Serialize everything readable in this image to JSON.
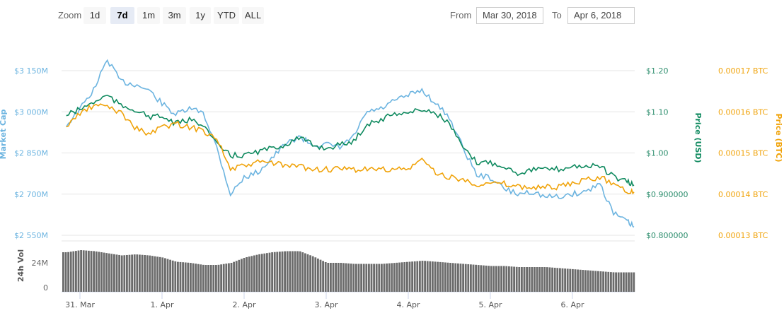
{
  "range_selector": {
    "zoom_label": "Zoom",
    "buttons": [
      "1d",
      "7d",
      "1m",
      "3m",
      "1y",
      "YTD",
      "ALL"
    ],
    "selected": "7d",
    "from_label": "From",
    "from_value": "Mar 30, 2018",
    "to_label": "To",
    "to_value": "Apr 6, 2018"
  },
  "colors": {
    "market_cap": "#6cb4e0",
    "price_usd": "#0f8a5f",
    "price_btc": "#f0a30a",
    "volume": "#6b6b6b"
  },
  "chart_data": {
    "type": "line",
    "x_ticks": [
      {
        "date": "2018-03-31T00:00",
        "label": "31. Mar"
      },
      {
        "date": "2018-04-01T00:00",
        "label": "1. Apr"
      },
      {
        "date": "2018-04-02T00:00",
        "label": "2. Apr"
      },
      {
        "date": "2018-04-03T00:00",
        "label": "3. Apr"
      },
      {
        "date": "2018-04-04T00:00",
        "label": "4. Apr"
      },
      {
        "date": "2018-04-05T00:00",
        "label": "5. Apr"
      },
      {
        "date": "2018-04-06T00:00",
        "label": "6. Apr"
      }
    ],
    "x_range": [
      "2018-03-30T19:00",
      "2018-04-06T18:00"
    ],
    "grid": true,
    "axes": {
      "market_cap": {
        "title": "Market Cap",
        "range": [
          2550,
          3150
        ],
        "ticks": [
          "$3 150M",
          "$3 000M",
          "$2 850M",
          "$2 700M",
          "$2 550M"
        ],
        "unit": "M USD"
      },
      "price_usd": {
        "title": "Price (USD)",
        "range": [
          0.8,
          1.2
        ],
        "ticks": [
          "$1.20",
          "$1.10",
          "$1.00",
          "$0.900000",
          "$0.800000"
        ]
      },
      "price_btc": {
        "title": "Price (BTC)",
        "range": [
          0.00013,
          0.00017
        ],
        "ticks": [
          "0.00017 BTC",
          "0.00016 BTC",
          "0.00015 BTC",
          "0.00014 BTC",
          "0.00013 BTC"
        ]
      },
      "volume": {
        "title": "24h Vol",
        "range": [
          0,
          36
        ],
        "ticks": [
          "24M",
          "0"
        ],
        "unit": "M USD"
      }
    },
    "x": [
      "2018-03-30T20:00",
      "2018-03-31T00:00",
      "2018-03-31T04:00",
      "2018-03-31T08:00",
      "2018-03-31T12:00",
      "2018-03-31T16:00",
      "2018-03-31T20:00",
      "2018-04-01T00:00",
      "2018-04-01T04:00",
      "2018-04-01T08:00",
      "2018-04-01T12:00",
      "2018-04-01T16:00",
      "2018-04-01T20:00",
      "2018-04-02T00:00",
      "2018-04-02T04:00",
      "2018-04-02T08:00",
      "2018-04-02T12:00",
      "2018-04-02T16:00",
      "2018-04-02T20:00",
      "2018-04-03T00:00",
      "2018-04-03T04:00",
      "2018-04-03T08:00",
      "2018-04-03T12:00",
      "2018-04-03T16:00",
      "2018-04-03T20:00",
      "2018-04-04T00:00",
      "2018-04-04T04:00",
      "2018-04-04T08:00",
      "2018-04-04T12:00",
      "2018-04-04T16:00",
      "2018-04-04T20:00",
      "2018-04-05T00:00",
      "2018-04-05T04:00",
      "2018-04-05T08:00",
      "2018-04-05T12:00",
      "2018-04-05T16:00",
      "2018-04-05T20:00",
      "2018-04-06T00:00",
      "2018-04-06T04:00",
      "2018-04-06T08:00",
      "2018-04-06T12:00",
      "2018-04-06T16:00",
      "2018-04-06T18:00"
    ],
    "series": [
      {
        "key": "market_cap",
        "axis": "market_cap",
        "values": [
          2950,
          3010,
          3080,
          3190,
          3110,
          3100,
          3080,
          3030,
          2990,
          3010,
          3000,
          2870,
          2700,
          2760,
          2780,
          2830,
          2880,
          2910,
          2880,
          2880,
          2870,
          2910,
          3000,
          3010,
          3040,
          3060,
          3080,
          3030,
          2980,
          2870,
          2770,
          2760,
          2720,
          2700,
          2710,
          2690,
          2690,
          2700,
          2710,
          2740,
          2630,
          2600,
          2580
        ]
      },
      {
        "key": "price_usd",
        "axis": "price_usd",
        "values": [
          1.092,
          1.106,
          1.123,
          1.14,
          1.114,
          1.106,
          1.088,
          1.088,
          1.071,
          1.08,
          1.071,
          1.02,
          0.994,
          0.994,
          1.003,
          1.011,
          1.02,
          1.037,
          1.02,
          1.011,
          1.02,
          1.028,
          1.071,
          1.08,
          1.097,
          1.097,
          1.106,
          1.097,
          1.071,
          1.011,
          0.977,
          0.977,
          0.968,
          0.951,
          0.96,
          0.96,
          0.96,
          0.968,
          0.968,
          0.968,
          0.942,
          0.929,
          0.922
        ]
      },
      {
        "key": "price_btc",
        "axis": "price_btc",
        "values": [
          0.0001563,
          0.0001597,
          0.0001614,
          0.0001614,
          0.0001597,
          0.0001563,
          0.0001545,
          0.0001563,
          0.0001571,
          0.0001563,
          0.0001554,
          0.0001537,
          0.000146,
          0.0001468,
          0.0001477,
          0.0001477,
          0.0001468,
          0.0001468,
          0.000146,
          0.000146,
          0.000146,
          0.000146,
          0.000146,
          0.000146,
          0.000146,
          0.000146,
          0.0001485,
          0.0001451,
          0.0001442,
          0.0001434,
          0.0001425,
          0.0001425,
          0.0001425,
          0.0001417,
          0.0001417,
          0.0001417,
          0.0001417,
          0.0001425,
          0.0001434,
          0.0001442,
          0.0001425,
          0.0001408,
          0.0001405
        ]
      },
      {
        "key": "volume",
        "axis": "volume",
        "type": "bar",
        "values": [
          34,
          36,
          35,
          33,
          31,
          32,
          31,
          29,
          25,
          24,
          22,
          22,
          24,
          29,
          32,
          34,
          35,
          35,
          30,
          24,
          24,
          23,
          23,
          23,
          24,
          25,
          26,
          25,
          24,
          23,
          22,
          21,
          21,
          20,
          20,
          20,
          19,
          18,
          17,
          16,
          15,
          15,
          15
        ]
      }
    ]
  }
}
